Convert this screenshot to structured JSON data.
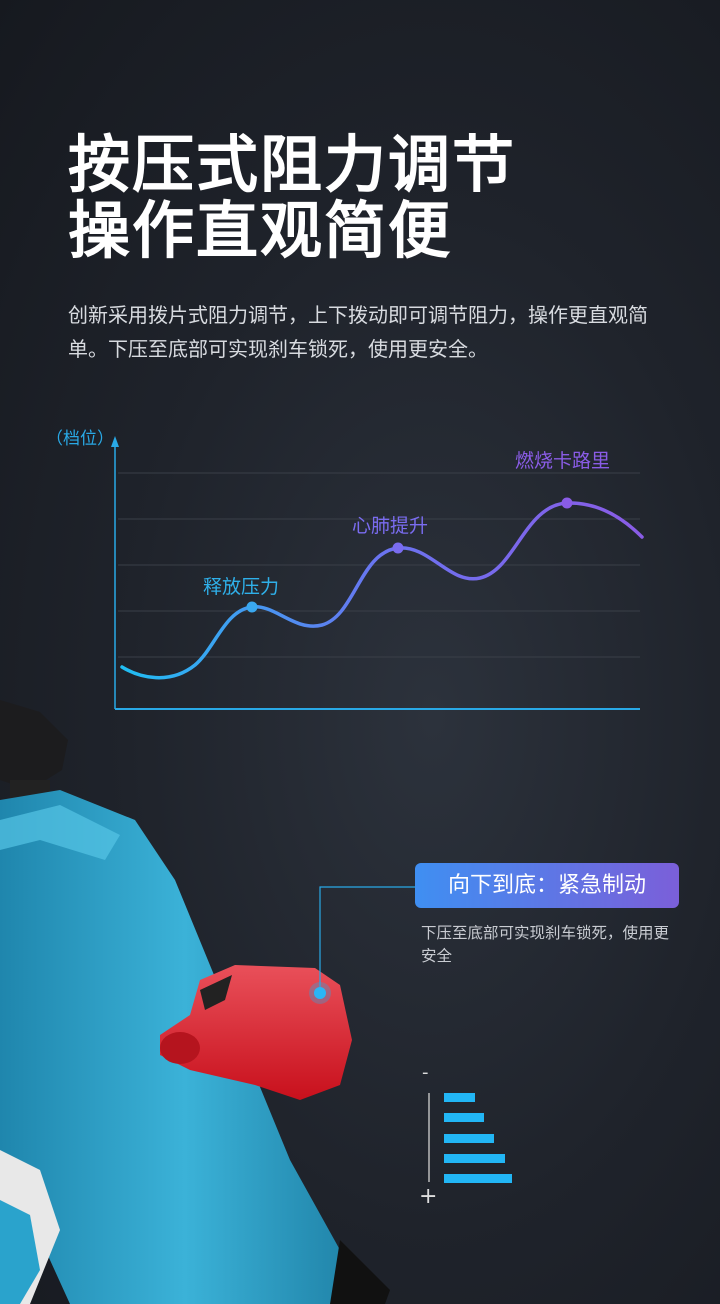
{
  "title": [
    "按压式阻力调节",
    "操作直观简便"
  ],
  "description": "创新采用拨片式阻力调节，上下拨动即可调节阻力，操作更直观简单。下压至底部可实现刹车锁死，使用更安全。",
  "chart": {
    "y_axis_label": "（档位）",
    "points": [
      {
        "label": "释放压力",
        "color": "#2fb0ea"
      },
      {
        "label": "心肺提升",
        "color": "#7a6cf0"
      },
      {
        "label": "燃烧卡路里",
        "color": "#8a5ce6"
      }
    ]
  },
  "callout": {
    "title": "向下到底：紧急制动",
    "text": "下压至底部可实现刹车锁死，使用更安全"
  },
  "resistance_indicator": {
    "minus": "-",
    "plus": "+",
    "levels": 5
  },
  "colors": {
    "accent_blue": "#22b6f5",
    "accent_purple": "#8a5ce6",
    "frame": "#2a9cc4",
    "lever": "#d8232f"
  }
}
